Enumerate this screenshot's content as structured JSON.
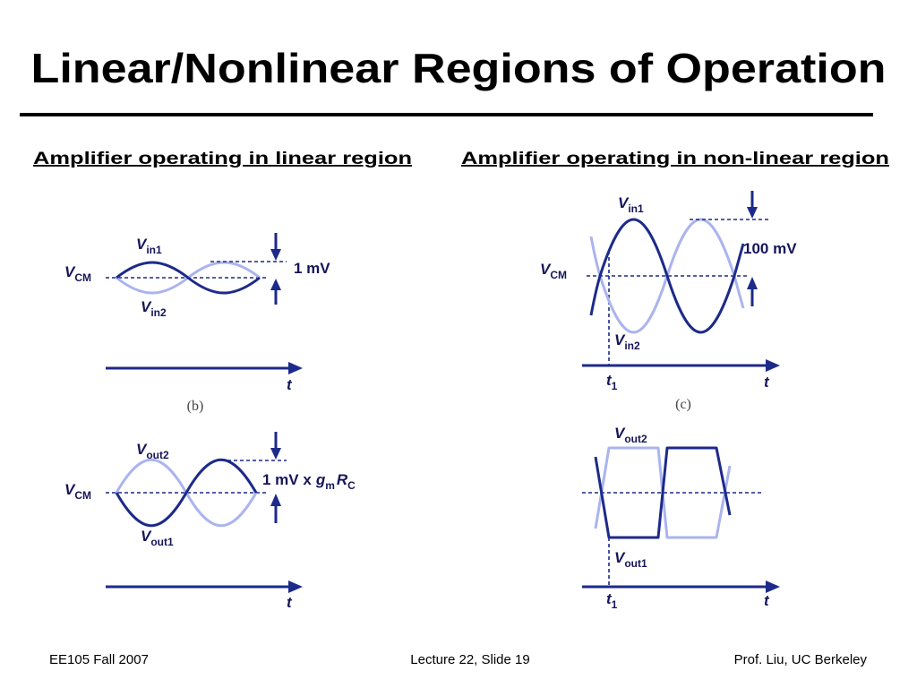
{
  "title": "Linear/Nonlinear Regions of Operation",
  "linear": {
    "heading": "Amplifier operating in linear region",
    "input": {
      "vin1": {
        "symbol": "V",
        "sub": "in1"
      },
      "vcm": {
        "symbol": "V",
        "sub": "CM"
      },
      "vin2": {
        "symbol": "V",
        "sub": "in2"
      },
      "amplitude": "1 mV",
      "t": "t",
      "caption": "(b)"
    },
    "output": {
      "vout2": {
        "symbol": "V",
        "sub": "out2"
      },
      "vcm": {
        "symbol": "V",
        "sub": "CM"
      },
      "vout1": {
        "symbol": "V",
        "sub": "out1"
      },
      "amplitude": {
        "text": "1 mV x",
        "gm": {
          "symbol": "g",
          "sub": "m"
        },
        "rc": {
          "symbol": "R",
          "sub": "C"
        }
      },
      "t": "t"
    }
  },
  "nonlinear": {
    "heading": "Amplifier operating in non-linear region",
    "input": {
      "vin1": {
        "symbol": "V",
        "sub": "in1"
      },
      "vcm": {
        "symbol": "V",
        "sub": "CM"
      },
      "vin2": {
        "symbol": "V",
        "sub": "in2"
      },
      "amplitude": "100 mV",
      "t": "t",
      "t1": {
        "symbol": "t",
        "sub": "1"
      },
      "caption": "(c)"
    },
    "output": {
      "vout2": {
        "symbol": "V",
        "sub": "out2"
      },
      "vout1": {
        "symbol": "V",
        "sub": "out1"
      },
      "t": "t",
      "t1": {
        "symbol": "t",
        "sub": "1"
      }
    }
  },
  "footer": {
    "left": "EE105 Fall 2007",
    "center": "Lecture 22, Slide 19",
    "right": "Prof. Liu, UC Berkeley"
  }
}
